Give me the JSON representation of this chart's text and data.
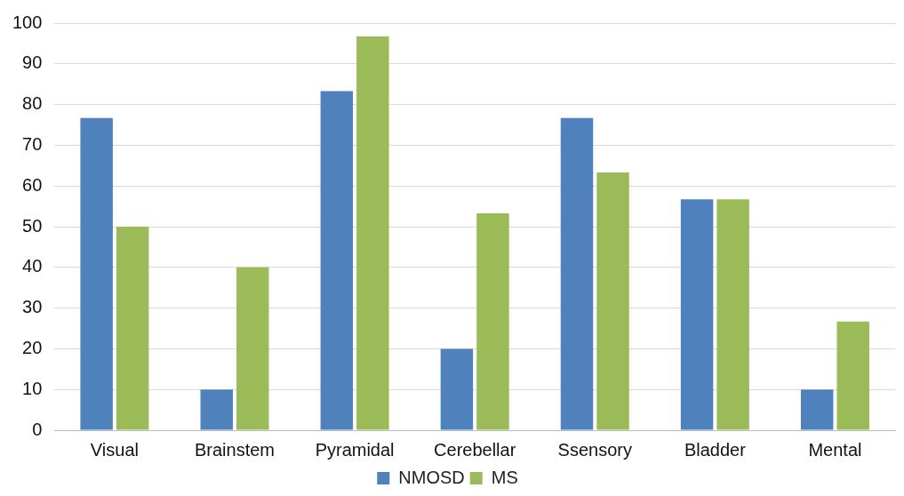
{
  "chart_data": {
    "type": "bar",
    "categories": [
      "Visual",
      "Brainstem",
      "Pyramidal",
      "Cerebellar",
      "Ssensory",
      "Bladder",
      "Mental"
    ],
    "series": [
      {
        "name": "NMOSD",
        "color": "#4f81bd",
        "values": [
          76.7,
          10,
          83.3,
          20,
          76.7,
          56.7,
          10
        ]
      },
      {
        "name": "MS",
        "color": "#9bbb59",
        "values": [
          50,
          40,
          96.7,
          53.3,
          63.3,
          56.7,
          26.7
        ]
      }
    ],
    "ylim": [
      0,
      100
    ],
    "yticks": [
      0,
      10,
      20,
      30,
      40,
      50,
      60,
      70,
      80,
      90,
      100
    ],
    "grid": "y",
    "legend": "bottom"
  }
}
